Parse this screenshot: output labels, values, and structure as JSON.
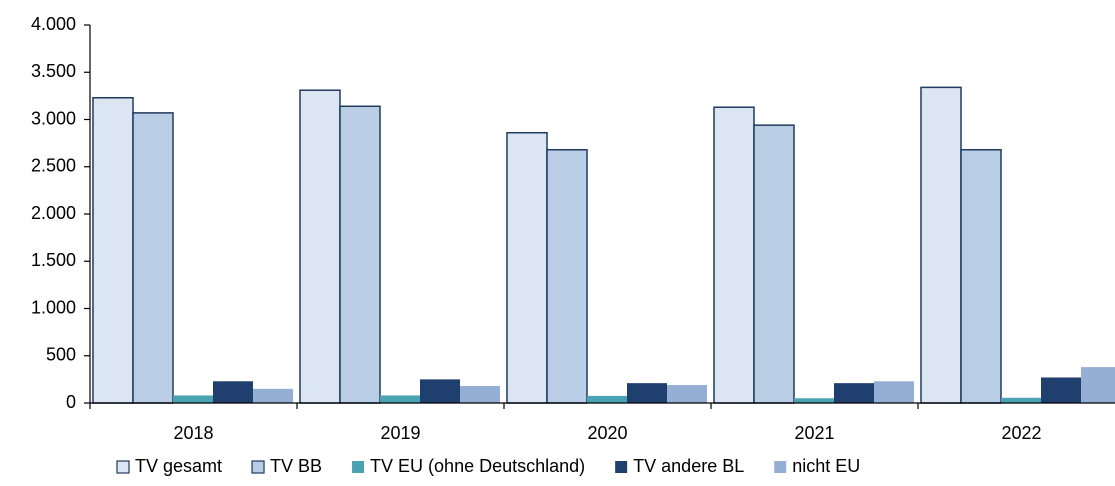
{
  "chart_data": {
    "type": "bar",
    "categories": [
      "2018",
      "2019",
      "2020",
      "2021",
      "2022"
    ],
    "series": [
      {
        "name": "TV gesamt",
        "color": "#dce6f2",
        "values": [
          3230,
          3310,
          2860,
          3130,
          3340
        ]
      },
      {
        "name": "TV BB",
        "color": "#b9cde5",
        "values": [
          3070,
          3140,
          2680,
          2940,
          2680
        ]
      },
      {
        "name": "TV EU (ohne Deutschland)",
        "color": "#4aa3b3",
        "values": [
          80,
          80,
          75,
          50,
          55
        ]
      },
      {
        "name": "TV andere BL",
        "color": "#1f3f6e",
        "values": [
          230,
          250,
          210,
          210,
          270
        ]
      },
      {
        "name": "nicht EU",
        "color": "#95aed4",
        "values": [
          150,
          180,
          190,
          230,
          380
        ]
      }
    ],
    "ylim": [
      0,
      4000
    ],
    "yticks": [
      0,
      500,
      {
        "value": 1000,
        "label": "1.000"
      },
      {
        "value": 1500,
        "label": "1.500"
      },
      {
        "value": 2000,
        "label": "2.000"
      },
      {
        "value": 2500,
        "label": "2.500"
      },
      {
        "value": 3000,
        "label": "3.000"
      },
      {
        "value": 3500,
        "label": "3.500"
      },
      {
        "value": 4000,
        "label": "4.000"
      }
    ],
    "grid": false,
    "legend": "bottom"
  }
}
